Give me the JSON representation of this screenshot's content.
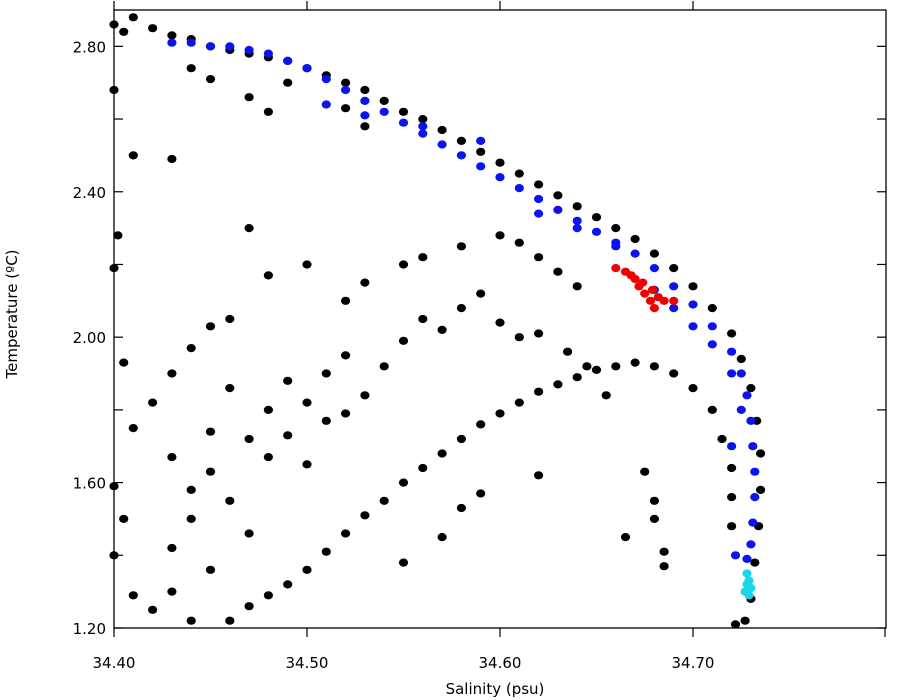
{
  "chart_data": {
    "type": "scatter",
    "title": "",
    "xlabel": "Salinity (psu)",
    "ylabel": "Temperature (ºC)",
    "xlim": [
      34.4,
      34.8
    ],
    "ylim": [
      1.2,
      2.9
    ],
    "x_ticks": [
      34.4,
      34.5,
      34.6,
      34.7
    ],
    "x_tick_labels": [
      "34.40",
      "34.50",
      "34.60",
      "34.70"
    ],
    "y_ticks": [
      1.2,
      1.6,
      2.0,
      2.4,
      2.8
    ],
    "y_tick_labels": [
      "1.20",
      "1.60",
      "2.00",
      "2.40",
      "2.80"
    ],
    "grid": false,
    "legend": false,
    "series": [
      {
        "color": "#000000",
        "points": [
          [
            34.4,
            2.86
          ],
          [
            34.405,
            2.84
          ],
          [
            34.41,
            2.88
          ],
          [
            34.42,
            2.85
          ],
          [
            34.43,
            2.83
          ],
          [
            34.44,
            2.82
          ],
          [
            34.45,
            2.8
          ],
          [
            34.46,
            2.79
          ],
          [
            34.47,
            2.78
          ],
          [
            34.48,
            2.77
          ],
          [
            34.49,
            2.76
          ],
          [
            34.5,
            2.74
          ],
          [
            34.51,
            2.72
          ],
          [
            34.52,
            2.7
          ],
          [
            34.53,
            2.68
          ],
          [
            34.54,
            2.65
          ],
          [
            34.55,
            2.62
          ],
          [
            34.56,
            2.6
          ],
          [
            34.57,
            2.57
          ],
          [
            34.58,
            2.54
          ],
          [
            34.59,
            2.51
          ],
          [
            34.6,
            2.48
          ],
          [
            34.61,
            2.45
          ],
          [
            34.62,
            2.42
          ],
          [
            34.63,
            2.39
          ],
          [
            34.64,
            2.36
          ],
          [
            34.65,
            2.33
          ],
          [
            34.66,
            2.3
          ],
          [
            34.67,
            2.27
          ],
          [
            34.68,
            2.23
          ],
          [
            34.69,
            2.19
          ],
          [
            34.7,
            2.14
          ],
          [
            34.71,
            2.08
          ],
          [
            34.72,
            2.01
          ],
          [
            34.725,
            1.94
          ],
          [
            34.73,
            1.86
          ],
          [
            34.733,
            1.77
          ],
          [
            34.735,
            1.68
          ],
          [
            34.735,
            1.58
          ],
          [
            34.734,
            1.48
          ],
          [
            34.732,
            1.38
          ],
          [
            34.73,
            1.28
          ],
          [
            34.727,
            1.22
          ],
          [
            34.722,
            1.21
          ],
          [
            34.4,
            2.68
          ],
          [
            34.402,
            2.28
          ],
          [
            34.4,
            2.19
          ],
          [
            34.405,
            1.93
          ],
          [
            34.41,
            1.75
          ],
          [
            34.4,
            1.59
          ],
          [
            34.405,
            1.5
          ],
          [
            34.4,
            1.4
          ],
          [
            34.41,
            1.29
          ],
          [
            34.43,
            1.9
          ],
          [
            34.44,
            1.97
          ],
          [
            34.45,
            2.03
          ],
          [
            34.46,
            2.05
          ],
          [
            34.47,
            2.3
          ],
          [
            34.48,
            2.17
          ],
          [
            34.5,
            2.2
          ],
          [
            34.52,
            2.1
          ],
          [
            34.53,
            2.15
          ],
          [
            34.55,
            2.2
          ],
          [
            34.56,
            2.22
          ],
          [
            34.58,
            2.25
          ],
          [
            34.6,
            2.28
          ],
          [
            34.61,
            2.26
          ],
          [
            34.62,
            2.22
          ],
          [
            34.63,
            2.18
          ],
          [
            34.64,
            2.14
          ],
          [
            34.42,
            1.82
          ],
          [
            34.43,
            1.67
          ],
          [
            34.44,
            1.58
          ],
          [
            34.45,
            1.74
          ],
          [
            34.46,
            1.86
          ],
          [
            34.47,
            1.72
          ],
          [
            34.48,
            1.8
          ],
          [
            34.49,
            1.88
          ],
          [
            34.5,
            1.82
          ],
          [
            34.51,
            1.9
          ],
          [
            34.52,
            1.95
          ],
          [
            34.53,
            1.84
          ],
          [
            34.54,
            1.92
          ],
          [
            34.55,
            1.99
          ],
          [
            34.56,
            2.05
          ],
          [
            34.57,
            2.02
          ],
          [
            34.58,
            2.08
          ],
          [
            34.59,
            2.12
          ],
          [
            34.6,
            2.04
          ],
          [
            34.61,
            2.0
          ],
          [
            34.43,
            1.42
          ],
          [
            34.44,
            1.5
          ],
          [
            34.45,
            1.63
          ],
          [
            34.46,
            1.55
          ],
          [
            34.47,
            1.46
          ],
          [
            34.48,
            1.67
          ],
          [
            34.49,
            1.73
          ],
          [
            34.5,
            1.65
          ],
          [
            34.51,
            1.77
          ],
          [
            34.52,
            1.79
          ],
          [
            34.46,
            1.22
          ],
          [
            34.47,
            1.26
          ],
          [
            34.48,
            1.29
          ],
          [
            34.49,
            1.32
          ],
          [
            34.5,
            1.36
          ],
          [
            34.51,
            1.41
          ],
          [
            34.52,
            1.46
          ],
          [
            34.53,
            1.51
          ],
          [
            34.54,
            1.55
          ],
          [
            34.55,
            1.6
          ],
          [
            34.56,
            1.64
          ],
          [
            34.57,
            1.68
          ],
          [
            34.58,
            1.72
          ],
          [
            34.59,
            1.76
          ],
          [
            34.6,
            1.79
          ],
          [
            34.61,
            1.82
          ],
          [
            34.62,
            1.85
          ],
          [
            34.63,
            1.87
          ],
          [
            34.64,
            1.89
          ],
          [
            34.65,
            1.91
          ],
          [
            34.66,
            1.92
          ],
          [
            34.67,
            1.93
          ],
          [
            34.68,
            1.92
          ],
          [
            34.69,
            1.9
          ],
          [
            34.7,
            1.86
          ],
          [
            34.71,
            1.8
          ],
          [
            34.715,
            1.72
          ],
          [
            34.72,
            1.64
          ],
          [
            34.72,
            1.56
          ],
          [
            34.72,
            1.48
          ],
          [
            34.675,
            1.63
          ],
          [
            34.68,
            1.55
          ],
          [
            34.68,
            1.5
          ],
          [
            34.685,
            1.41
          ],
          [
            34.685,
            1.37
          ],
          [
            34.665,
            1.45
          ],
          [
            34.655,
            1.84
          ],
          [
            34.645,
            1.92
          ],
          [
            34.635,
            1.96
          ],
          [
            34.62,
            2.01
          ],
          [
            34.42,
            1.25
          ],
          [
            34.43,
            1.3
          ],
          [
            34.44,
            1.22
          ],
          [
            34.45,
            1.36
          ],
          [
            34.55,
            1.38
          ],
          [
            34.57,
            1.45
          ],
          [
            34.58,
            1.53
          ],
          [
            34.59,
            1.57
          ],
          [
            34.62,
            1.62
          ],
          [
            34.41,
            2.5
          ],
          [
            34.43,
            2.49
          ],
          [
            34.48,
            2.62
          ],
          [
            34.47,
            2.66
          ],
          [
            34.45,
            2.71
          ],
          [
            34.44,
            2.74
          ],
          [
            34.53,
            2.58
          ],
          [
            34.52,
            2.63
          ],
          [
            34.49,
            2.7
          ]
        ]
      },
      {
        "color": "#0a14f0",
        "points": [
          [
            34.43,
            2.81
          ],
          [
            34.44,
            2.81
          ],
          [
            34.45,
            2.8
          ],
          [
            34.46,
            2.8
          ],
          [
            34.47,
            2.79
          ],
          [
            34.48,
            2.78
          ],
          [
            34.49,
            2.76
          ],
          [
            34.5,
            2.74
          ],
          [
            34.51,
            2.71
          ],
          [
            34.52,
            2.68
          ],
          [
            34.53,
            2.65
          ],
          [
            34.54,
            2.62
          ],
          [
            34.55,
            2.59
          ],
          [
            34.56,
            2.56
          ],
          [
            34.57,
            2.53
          ],
          [
            34.58,
            2.5
          ],
          [
            34.59,
            2.47
          ],
          [
            34.6,
            2.44
          ],
          [
            34.61,
            2.41
          ],
          [
            34.62,
            2.38
          ],
          [
            34.63,
            2.35
          ],
          [
            34.64,
            2.32
          ],
          [
            34.65,
            2.29
          ],
          [
            34.66,
            2.26
          ],
          [
            34.67,
            2.23
          ],
          [
            34.68,
            2.19
          ],
          [
            34.69,
            2.14
          ],
          [
            34.7,
            2.09
          ],
          [
            34.71,
            2.03
          ],
          [
            34.72,
            1.96
          ],
          [
            34.725,
            1.9
          ],
          [
            34.728,
            1.84
          ],
          [
            34.73,
            1.77
          ],
          [
            34.731,
            1.7
          ],
          [
            34.732,
            1.63
          ],
          [
            34.732,
            1.56
          ],
          [
            34.731,
            1.49
          ],
          [
            34.73,
            1.43
          ],
          [
            34.728,
            1.39
          ],
          [
            34.722,
            1.4
          ],
          [
            34.51,
            2.64
          ],
          [
            34.53,
            2.61
          ],
          [
            34.56,
            2.58
          ],
          [
            34.59,
            2.54
          ],
          [
            34.62,
            2.34
          ],
          [
            34.64,
            2.3
          ],
          [
            34.66,
            2.25
          ],
          [
            34.68,
            2.13
          ],
          [
            34.69,
            2.08
          ],
          [
            34.7,
            2.03
          ],
          [
            34.71,
            1.98
          ],
          [
            34.72,
            1.9
          ],
          [
            34.725,
            1.8
          ],
          [
            34.72,
            1.7
          ]
        ]
      },
      {
        "color": "#f00000",
        "points": [
          [
            34.66,
            2.19
          ],
          [
            34.665,
            2.18
          ],
          [
            34.67,
            2.16
          ],
          [
            34.672,
            2.14
          ],
          [
            34.675,
            2.12
          ],
          [
            34.678,
            2.1
          ],
          [
            34.68,
            2.08
          ],
          [
            34.682,
            2.11
          ],
          [
            34.685,
            2.1
          ],
          [
            34.69,
            2.1
          ],
          [
            34.674,
            2.15
          ],
          [
            34.668,
            2.17
          ],
          [
            34.679,
            2.13
          ]
        ]
      },
      {
        "color": "#18d6e8",
        "points": [
          [
            34.728,
            1.35
          ],
          [
            34.729,
            1.33
          ],
          [
            34.73,
            1.31
          ],
          [
            34.729,
            1.29
          ],
          [
            34.728,
            1.32
          ],
          [
            34.727,
            1.3
          ]
        ]
      }
    ]
  }
}
